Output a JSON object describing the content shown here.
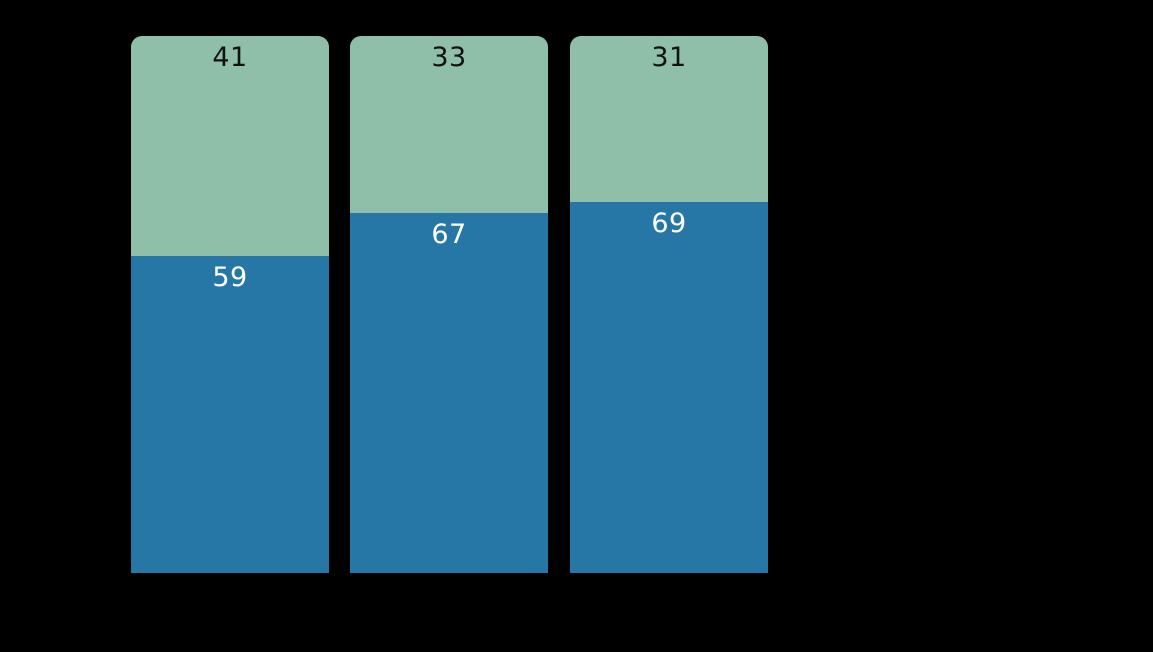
{
  "background_color": "#000000",
  "chart_data": {
    "type": "bar",
    "stacked": true,
    "orientation": "vertical",
    "title": "",
    "xlabel": "",
    "ylabel": "",
    "ylim": [
      0,
      100
    ],
    "grid": false,
    "legend_position": "none",
    "axes_visible": false,
    "bar_count": 3,
    "series": [
      {
        "name": "green-top-segment",
        "color": "#8fbfa8",
        "label_color": "#111111",
        "values": [
          41,
          33,
          31
        ]
      },
      {
        "name": "blue-bottom-segment",
        "color": "#2677a6",
        "label_color": "#ffffff",
        "values": [
          59,
          67,
          69
        ]
      }
    ]
  }
}
